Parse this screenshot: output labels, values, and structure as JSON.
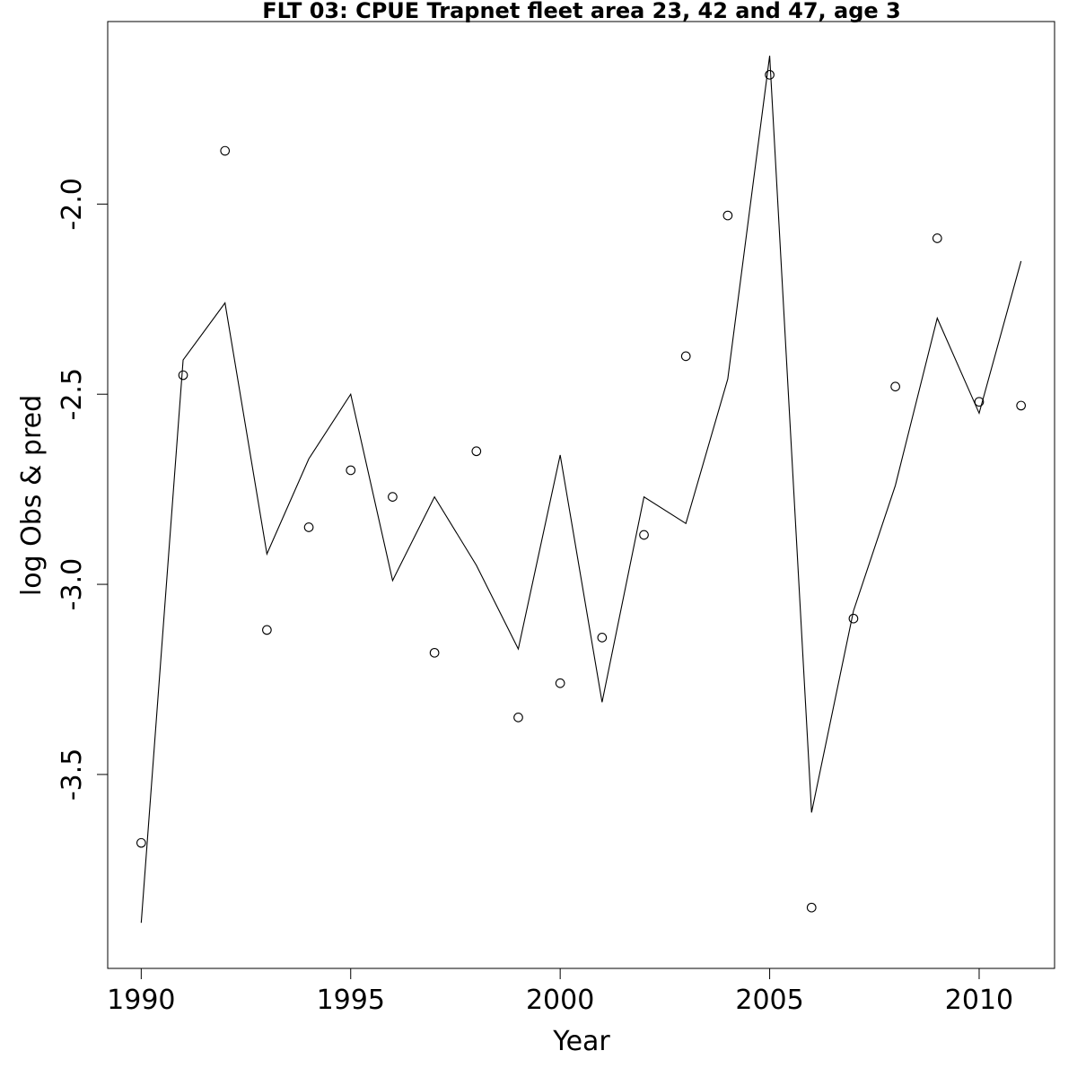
{
  "chart_data": {
    "type": "line",
    "title": "FLT 03: CPUE Trapnet fleet area 23, 42 and 47, age 3",
    "xlabel": "Year",
    "ylabel": "log Obs & pred",
    "xlim": [
      1989.2,
      2011.8
    ],
    "ylim": [
      -4.01,
      -1.52
    ],
    "x_ticks": [
      1990,
      1995,
      2000,
      2005,
      2010
    ],
    "y_ticks": [
      -3.5,
      -3.0,
      -2.5,
      -2.0
    ],
    "grid": false,
    "legend": "none",
    "x": [
      1990,
      1991,
      1992,
      1993,
      1994,
      1995,
      1996,
      1997,
      1998,
      1999,
      2000,
      2001,
      2002,
      2003,
      2004,
      2005,
      2006,
      2007,
      2008,
      2009,
      2010,
      2011
    ],
    "series": [
      {
        "type": "line",
        "values": [
          -3.89,
          -2.41,
          -2.26,
          -2.92,
          -2.67,
          -2.5,
          -2.99,
          -2.77,
          -2.95,
          -3.17,
          -2.66,
          -3.31,
          -2.77,
          -2.84,
          -2.46,
          -1.61,
          -3.6,
          -3.07,
          -2.74,
          -2.3,
          -2.55,
          -2.15
        ]
      },
      {
        "type": "scatter",
        "marker": "open-circle",
        "values": [
          -3.68,
          -2.45,
          -1.86,
          -3.12,
          -2.85,
          -2.7,
          -2.77,
          -3.18,
          -2.65,
          -3.35,
          -3.26,
          -3.14,
          -2.87,
          -2.4,
          -2.03,
          -1.66,
          -3.85,
          -3.09,
          -2.48,
          -2.09,
          -2.52,
          -2.53
        ]
      }
    ]
  }
}
